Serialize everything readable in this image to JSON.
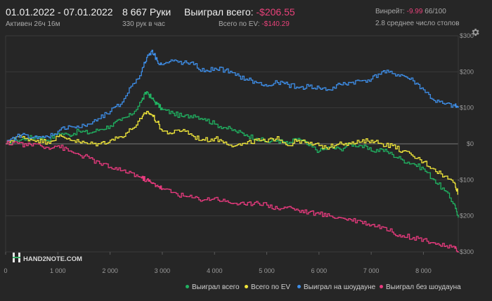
{
  "header": {
    "date_range": "01.01.2022 - 07.01.2022",
    "active_time": "Активен 26ч 16м",
    "hands": "8 667 Руки",
    "hands_per_hour": "330 рук в час",
    "won_total_label": "Выиграл всего:",
    "won_total_value": "-$206.55",
    "ev_label": "Всего по EV:",
    "ev_value": "-$140.29",
    "winrate_label": "Винрейт:",
    "winrate_value": "-9.99",
    "winrate_hands": "66/100",
    "avg_tables": "2.8 среднее число столов"
  },
  "watermark": "HAND2NOTE.COM",
  "icons": {
    "settings": "gear-icon",
    "logo": "hand2note-logo-icon"
  },
  "chart_data": {
    "type": "line",
    "x_ticks": [
      "0",
      "1 000",
      "2 000",
      "3 000",
      "4 000",
      "5 000",
      "6 000",
      "7 000",
      "8 000"
    ],
    "y_ticks": [
      "$300",
      "$200",
      "$100",
      "$0",
      "-$100",
      "-$200",
      "-$300"
    ],
    "xlim": [
      0,
      8667
    ],
    "ylim": [
      -300,
      300
    ],
    "grid": true,
    "legend_position": "bottom-right",
    "series": [
      {
        "name": "Выиграл всего",
        "color": "#20b261",
        "x": [
          0,
          200,
          400,
          600,
          800,
          1000,
          1200,
          1400,
          1600,
          1800,
          2000,
          2200,
          2400,
          2600,
          2700,
          2800,
          2900,
          3000,
          3200,
          3400,
          3600,
          3800,
          4000,
          4200,
          4400,
          4600,
          4800,
          5000,
          5200,
          5400,
          5600,
          5800,
          6000,
          6200,
          6400,
          6600,
          6800,
          7000,
          7200,
          7400,
          7600,
          7800,
          8000,
          8200,
          8400,
          8600,
          8667
        ],
        "y": [
          0,
          10,
          15,
          20,
          10,
          30,
          25,
          35,
          30,
          40,
          50,
          65,
          80,
          120,
          145,
          125,
          110,
          95,
          85,
          75,
          80,
          70,
          55,
          45,
          35,
          25,
          15,
          5,
          10,
          0,
          15,
          -5,
          -20,
          -10,
          -15,
          0,
          -5,
          -20,
          -15,
          -30,
          -45,
          -55,
          -70,
          -100,
          -130,
          -170,
          -205
        ]
      },
      {
        "name": "Всего по EV",
        "color": "#f0e63a",
        "x": [
          0,
          200,
          400,
          600,
          800,
          1000,
          1200,
          1400,
          1600,
          1800,
          2000,
          2200,
          2400,
          2600,
          2700,
          2800,
          2900,
          3000,
          3200,
          3400,
          3600,
          3800,
          4000,
          4200,
          4400,
          4600,
          4800,
          5000,
          5200,
          5400,
          5600,
          5800,
          6000,
          6200,
          6400,
          6600,
          6800,
          7000,
          7200,
          7400,
          7600,
          7800,
          8000,
          8200,
          8400,
          8600,
          8667
        ],
        "y": [
          0,
          20,
          15,
          10,
          5,
          20,
          15,
          5,
          0,
          0,
          10,
          20,
          40,
          70,
          90,
          80,
          60,
          35,
          30,
          40,
          20,
          10,
          15,
          5,
          -5,
          0,
          10,
          5,
          20,
          -5,
          10,
          0,
          -5,
          -10,
          5,
          0,
          5,
          10,
          0,
          -5,
          -20,
          -35,
          -50,
          -70,
          -90,
          -110,
          -140
        ]
      },
      {
        "name": "Выиграл на шоудауне",
        "color": "#3e8ee8",
        "x": [
          0,
          200,
          400,
          600,
          800,
          1000,
          1200,
          1400,
          1600,
          1800,
          2000,
          2200,
          2400,
          2600,
          2700,
          2800,
          2900,
          3000,
          3200,
          3400,
          3600,
          3800,
          4000,
          4200,
          4400,
          4600,
          4800,
          5000,
          5200,
          5400,
          5600,
          5800,
          6000,
          6200,
          6400,
          6600,
          6800,
          7000,
          7200,
          7400,
          7600,
          7800,
          8000,
          8200,
          8400,
          8600,
          8667
        ],
        "y": [
          0,
          20,
          25,
          15,
          20,
          35,
          50,
          45,
          55,
          70,
          90,
          110,
          160,
          200,
          240,
          260,
          230,
          220,
          230,
          225,
          220,
          200,
          210,
          205,
          190,
          180,
          170,
          160,
          170,
          165,
          155,
          160,
          155,
          150,
          165,
          170,
          175,
          180,
          200,
          195,
          190,
          175,
          150,
          120,
          110,
          105,
          100
        ]
      },
      {
        "name": "Выиграл без шоудауна",
        "color": "#e83a7e",
        "x": [
          0,
          200,
          400,
          600,
          800,
          1000,
          1200,
          1400,
          1600,
          1800,
          2000,
          2200,
          2400,
          2600,
          2700,
          2800,
          2900,
          3000,
          3200,
          3400,
          3600,
          3800,
          4000,
          4200,
          4400,
          4600,
          4800,
          5000,
          5200,
          5400,
          5600,
          5800,
          6000,
          6200,
          6400,
          6600,
          6800,
          7000,
          7200,
          7400,
          7600,
          7800,
          8000,
          8200,
          8400,
          8600,
          8667
        ],
        "y": [
          0,
          5,
          -5,
          0,
          -10,
          -5,
          -20,
          -30,
          -40,
          -55,
          -65,
          -75,
          -80,
          -95,
          -100,
          -110,
          -115,
          -125,
          -135,
          -145,
          -150,
          -155,
          -150,
          -160,
          -165,
          -170,
          -160,
          -170,
          -180,
          -175,
          -185,
          -190,
          -195,
          -200,
          -205,
          -210,
          -215,
          -225,
          -230,
          -245,
          -255,
          -260,
          -265,
          -275,
          -285,
          -290,
          -298
        ]
      }
    ]
  }
}
